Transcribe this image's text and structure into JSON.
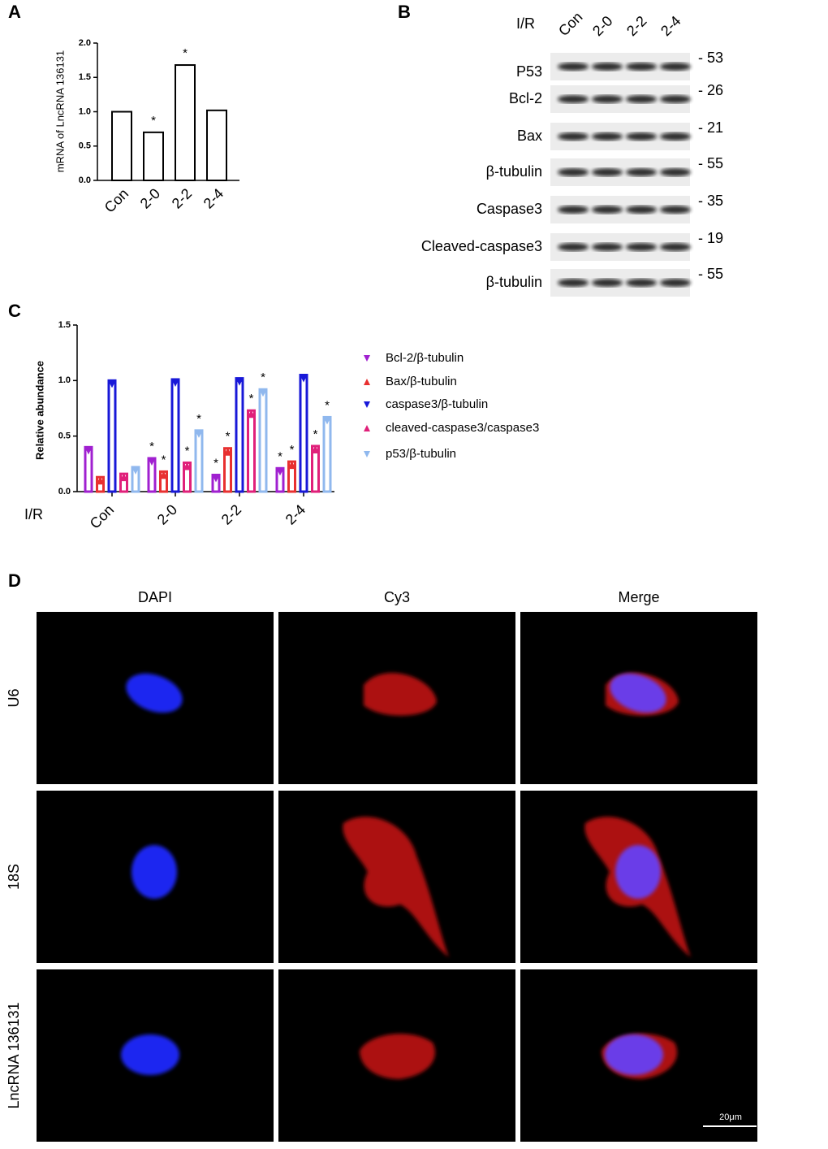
{
  "panel_labels": [
    "A",
    "B",
    "C",
    "D"
  ],
  "chart_data": [
    {
      "type": "bar",
      "y_label": "mRNA of LncRNA 136131",
      "categories": [
        "Con",
        "2-0",
        "2-2",
        "2-4"
      ],
      "values": [
        1.0,
        0.7,
        1.68,
        1.02
      ],
      "annotations": [
        null,
        "*",
        "*",
        null
      ],
      "color": "#000000",
      "ylim": [
        0,
        2
      ],
      "yticks": [
        {
          "value": 0,
          "label": "0.0"
        },
        {
          "value": 0.5,
          "label": "0.5"
        },
        {
          "value": 1,
          "label": "1.0"
        },
        {
          "value": 1.5,
          "label": "1.5"
        },
        {
          "value": 2,
          "label": "2.0"
        }
      ]
    },
    {
      "type": "grouped-bar",
      "y_label": "Relative abundance",
      "x_label": "I/R",
      "categories": [
        "Con",
        "2-0",
        "2-2",
        "2-4"
      ],
      "series": [
        {
          "name": "Bcl-2/β-tubulin",
          "color": "#a020d0",
          "marker": "down",
          "values": [
            0.4,
            0.3,
            0.15,
            0.21
          ],
          "annotations": [
            null,
            "*",
            "*",
            "*"
          ]
        },
        {
          "name": "Bax/β-tubulin",
          "color": "#e83030",
          "marker": "up",
          "values": [
            0.13,
            0.18,
            0.39,
            0.27
          ],
          "annotations": [
            null,
            "*",
            "*",
            "*"
          ]
        },
        {
          "name": "caspase3/β-tubulin",
          "color": "#1818d8",
          "marker": "down",
          "values": [
            1.0,
            1.01,
            1.02,
            1.05
          ]
        },
        {
          "name": "cleaved-caspase3/caspase3",
          "color": "#e0207a",
          "marker": "up",
          "values": [
            0.16,
            0.26,
            0.73,
            0.41
          ],
          "annotations": [
            null,
            "*",
            "*",
            "*"
          ]
        },
        {
          "name": "p53/β-tubulin",
          "color": "#90b8ee",
          "marker": "down",
          "values": [
            0.22,
            0.55,
            0.92,
            0.67
          ],
          "annotations": [
            null,
            "*",
            "*",
            "*"
          ]
        }
      ],
      "ylim": [
        0,
        1.5
      ],
      "yticks": [
        {
          "value": 0,
          "label": "0.0"
        },
        {
          "value": 0.5,
          "label": "0.5"
        },
        {
          "value": 1,
          "label": "1.0"
        },
        {
          "value": 1.5,
          "label": "1.5"
        }
      ]
    }
  ],
  "blot": {
    "group_label": "I/R",
    "lanes": [
      "Con",
      "2-0",
      "2-2",
      "2-4"
    ],
    "rows": [
      {
        "label": "P53",
        "kda": "- 53"
      },
      {
        "label": "Bcl-2",
        "kda": "- 26"
      },
      {
        "label": "Bax",
        "kda": "- 21"
      },
      {
        "label": "β-tubulin",
        "kda": "- 55"
      },
      {
        "label": "Caspase3",
        "kda": "- 35"
      },
      {
        "label": "Cleaved-caspase3",
        "kda": "- 19"
      },
      {
        "label": "β-tubulin",
        "kda": "- 55"
      }
    ]
  },
  "microscopy": {
    "columns": [
      "DAPI",
      "Cy3",
      "Merge"
    ],
    "rows": [
      "U6",
      "18S",
      "LncRNA 136131"
    ],
    "scale_bar": "20μm"
  }
}
